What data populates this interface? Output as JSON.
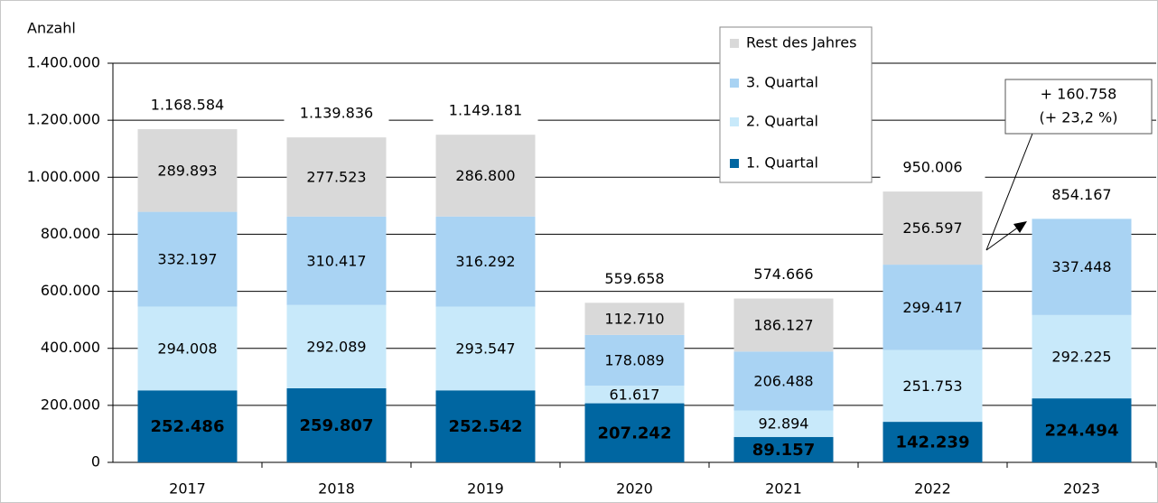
{
  "chart_data": {
    "type": "stacked_bar",
    "y_label": "Anzahl",
    "categories": [
      "2017",
      "2018",
      "2019",
      "2020",
      "2021",
      "2022",
      "2023"
    ],
    "series": [
      {
        "name": "1. Quartal",
        "color": "#0066a1",
        "values": [
          252486,
          259807,
          252542,
          207242,
          89157,
          142239,
          224494
        ],
        "value_labels": [
          "252.486",
          "259.807",
          "252.542",
          "207.242",
          "89.157",
          "142.239",
          "224.494"
        ]
      },
      {
        "name": "2. Quartal",
        "color": "#c8e9fa",
        "values": [
          294008,
          292089,
          293547,
          61617,
          92894,
          251753,
          292225
        ],
        "value_labels": [
          "294.008",
          "292.089",
          "293.547",
          "61.617",
          "92.894",
          "251.753",
          "292.225"
        ]
      },
      {
        "name": "3. Quartal",
        "color": "#a9d3f3",
        "values": [
          332197,
          310417,
          316292,
          178089,
          206488,
          299417,
          337448
        ],
        "value_labels": [
          "332.197",
          "310.417",
          "316.292",
          "178.089",
          "206.488",
          "299.417",
          "337.448"
        ]
      },
      {
        "name": "Rest des Jahres",
        "color": "#d9d9d9",
        "values": [
          289893,
          277523,
          286800,
          112710,
          186127,
          256597,
          null
        ],
        "value_labels": [
          "289.893",
          "277.523",
          "286.800",
          "112.710",
          "186.127",
          "256.597",
          null
        ]
      }
    ],
    "totals": {
      "values": [
        1168584,
        1139836,
        1149181,
        559658,
        574666,
        950006,
        854167
      ],
      "value_labels": [
        "1.168.584",
        "1.139.836",
        "1.149.181",
        "559.658",
        "574.666",
        "950.006",
        "854.167"
      ]
    },
    "annotation": [
      "+ 160.758",
      "(+ 23,2 %)"
    ],
    "ylim": [
      0,
      1400000
    ],
    "yticks": [
      0,
      {
        "value": 200000,
        "label": "200.000"
      },
      {
        "value": 400000,
        "label": "400.000"
      },
      {
        "value": 600000,
        "label": "600.000"
      },
      {
        "value": 800000,
        "label": "800.000"
      },
      {
        "value": 1000000,
        "label": "1.000.000"
      },
      {
        "value": 1200000,
        "label": "1.200.000"
      },
      {
        "value": 1400000,
        "label": "1.400.000"
      }
    ],
    "grid": true,
    "legend": "top-right"
  }
}
